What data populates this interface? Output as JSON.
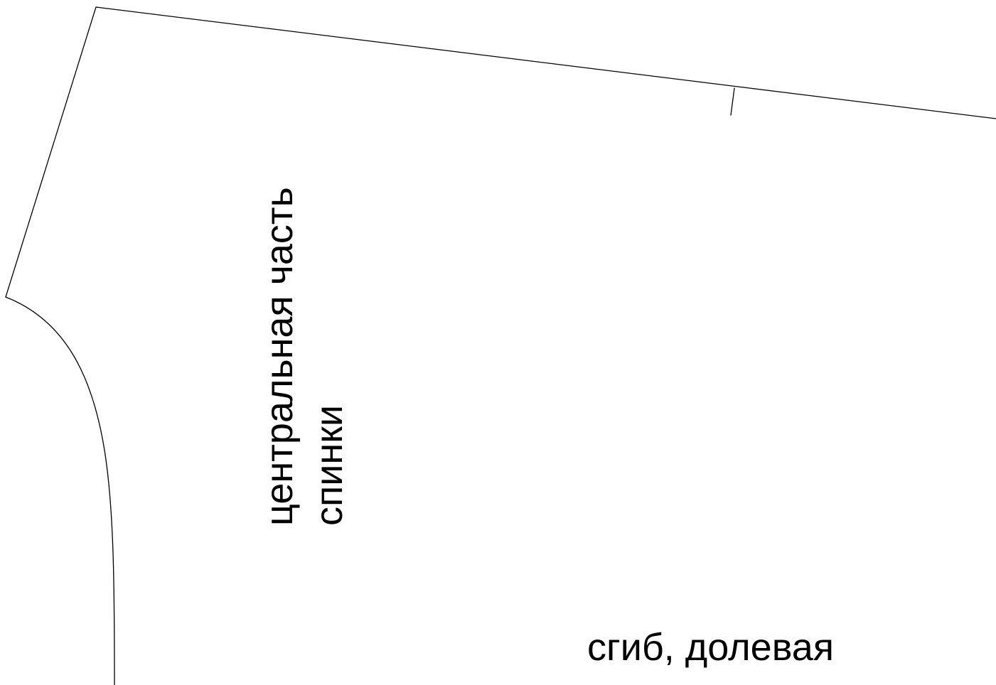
{
  "pattern": {
    "line_color": "#000000",
    "background": "#ffffff",
    "piece_label": {
      "line1": "центральная часть",
      "line2": "спинки"
    },
    "fold_label": "сгиб, долевая"
  }
}
